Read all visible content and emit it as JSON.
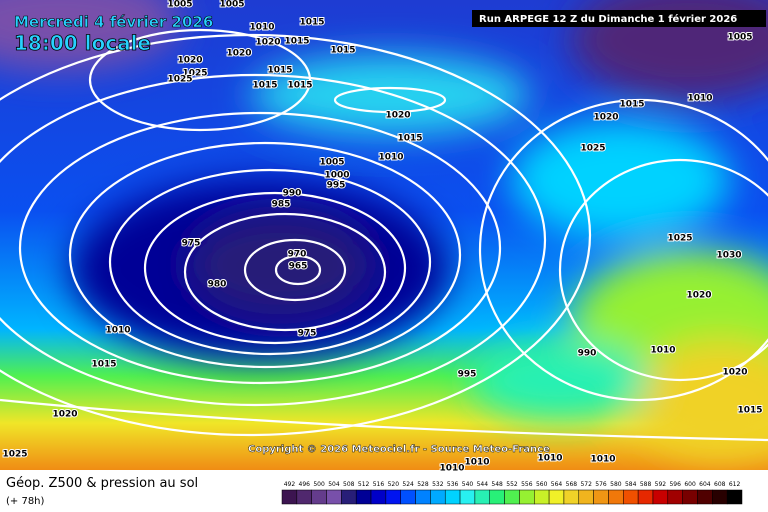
{
  "header": {
    "title": "Mercredi 4 février 2026",
    "time": "18:00 locale",
    "run": "Run ARPEGE 12 Z du Dimanche 1 février 2026",
    "copyright": "Copyright © 2026 Meteociel.fr - Source Meteo-France"
  },
  "legend": {
    "title": "Géop. Z500 & pression au sol",
    "lead": "(+ 78h)"
  },
  "isobars": [
    "1005",
    "1005",
    "1010",
    "1015",
    "1020",
    "1015",
    "1015",
    "1020",
    "1020",
    "1025",
    "1025",
    "1015",
    "1015",
    "1015",
    "1020",
    "1015",
    "1005",
    "1010",
    "1000",
    "995",
    "990",
    "985",
    "975",
    "970",
    "965",
    "980",
    "975",
    "1010",
    "1015",
    "1020",
    "1025",
    "995",
    "990",
    "1010",
    "1010",
    "1010",
    "1010",
    "1005",
    "1010",
    "1015",
    "1020",
    "1025",
    "1025",
    "1030",
    "1020",
    "1010",
    "1020",
    "1015"
  ],
  "scale": {
    "values": [
      492,
      496,
      500,
      504,
      508,
      512,
      516,
      520,
      524,
      528,
      532,
      536,
      540,
      544,
      548,
      552,
      556,
      560,
      564,
      568,
      572,
      576,
      580,
      584,
      588,
      592,
      596,
      600,
      604,
      608,
      612
    ],
    "colors": [
      "#3c1450",
      "#50286e",
      "#643c8c",
      "#7850aa",
      "#281e78",
      "#000096",
      "#0000c8",
      "#0014f0",
      "#0050ff",
      "#0082ff",
      "#00aaff",
      "#00d2ff",
      "#28f0f0",
      "#28f0b4",
      "#28f078",
      "#50f050",
      "#96f032",
      "#c8f028",
      "#f0f028",
      "#f0d228",
      "#f0b41e",
      "#f09614",
      "#f0780a",
      "#f05000",
      "#e62800",
      "#c80000",
      "#a00000",
      "#780000",
      "#500000",
      "#280000",
      "#000000"
    ]
  }
}
